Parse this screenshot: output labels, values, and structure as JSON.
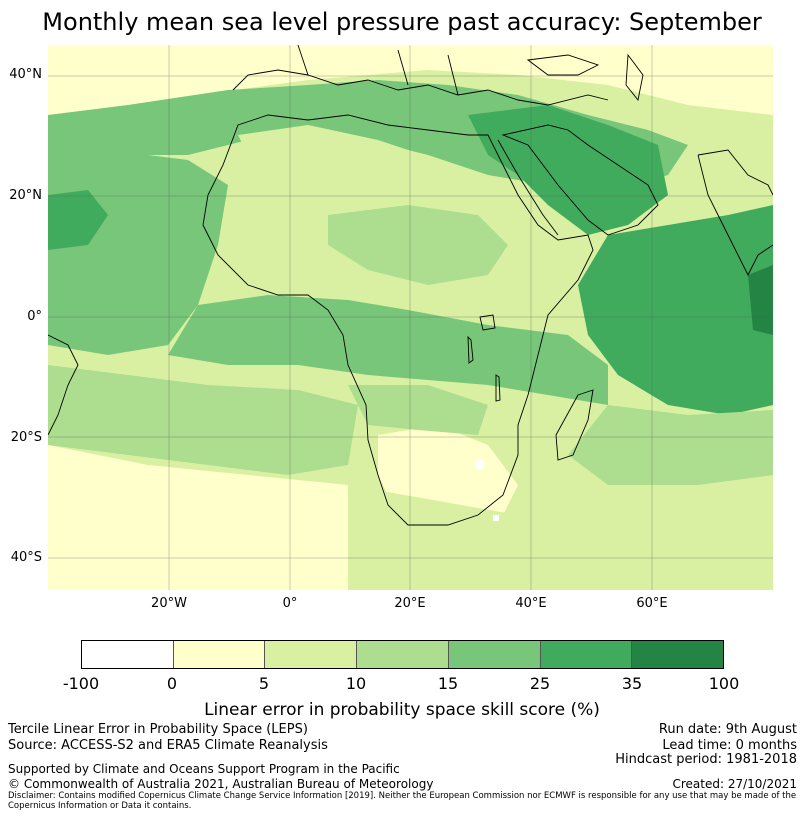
{
  "title": "Monthly mean sea level pressure past accuracy: September",
  "map": {
    "lat_labels": [
      "40°N",
      "20°N",
      "0°",
      "20°S",
      "40°S"
    ],
    "lon_labels": [
      "20°W",
      "0°",
      "20°E",
      "40°E",
      "60°E"
    ],
    "colors": {
      "c0": "#ffffff",
      "c1": "#ffffcc",
      "c2": "#d9f0a3",
      "c3": "#addd8e",
      "c4": "#78c679",
      "c5": "#41ab5d",
      "c6": "#238443",
      "coast": "#000000",
      "grid": "#555555"
    }
  },
  "colorbar": {
    "ticks": [
      "-100",
      "0",
      "5",
      "10",
      "15",
      "25",
      "35",
      "100"
    ],
    "colors": [
      "#ffffff",
      "#ffffcc",
      "#d9f0a3",
      "#addd8e",
      "#78c679",
      "#41ab5d",
      "#238443"
    ],
    "label": "Linear error in probability space skill score (%)"
  },
  "footer": {
    "left1": "Tercile Linear Error in Probability Space (LEPS)",
    "left2": "Source: ACCESS-S2 and ERA5 Climate Reanalysis",
    "support": "Supported by Climate and Oceans Support Program in the Pacific",
    "copyright": "© Commonwealth of Australia 2021, Australian Bureau of Meteorology",
    "run_date": "Run date: 9th August",
    "lead_time": "Lead time: 0 months",
    "hindcast": "Hindcast period: 1981-2018",
    "created": "Created: 27/10/2021",
    "disclaimer": "Disclaimer: Contains modified Copernicus Climate Change Service Information [2019]. Neither the European Commission nor ECMWF is responsible for any use that may be made of the Copernicus Information or Data it contains."
  }
}
